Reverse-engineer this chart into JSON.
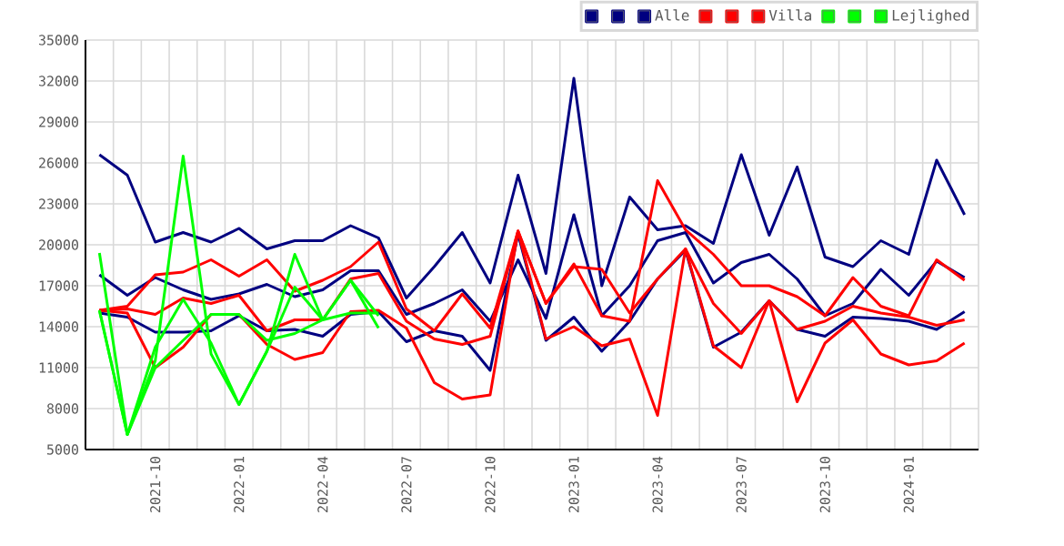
{
  "chart_data": {
    "type": "line",
    "categories": [
      null,
      null,
      "2021-10",
      null,
      null,
      "2022-01",
      null,
      null,
      "2022-04",
      null,
      null,
      "2022-07",
      null,
      null,
      "2022-10",
      null,
      null,
      "2023-01",
      null,
      null,
      "2023-04",
      null,
      null,
      "2023-07",
      null,
      null,
      "2023-10",
      null,
      null,
      "2024-01",
      null,
      null
    ],
    "series": [
      {
        "color": "#000080",
        "values": [
          26600,
          25100,
          20200,
          20900,
          20200,
          21200,
          19700,
          20300,
          20300,
          21400,
          20500,
          16100,
          18400,
          20900,
          17200,
          25100,
          17900,
          32200,
          17000,
          23500,
          21100,
          21400,
          20100,
          26600,
          20700,
          25700,
          19100,
          18400,
          20300,
          19300,
          26200,
          22200
        ]
      },
      {
        "color": "#000080",
        "values": [
          17800,
          16300,
          17600,
          16700,
          16000,
          16400,
          17100,
          16200,
          16700,
          18100,
          18100,
          14900,
          15700,
          16700,
          14400,
          18900,
          14600,
          22200,
          14800,
          17000,
          20300,
          20900,
          17200,
          18700,
          19300,
          17500,
          14800,
          15700,
          18200,
          16300,
          18800,
          17600
        ]
      },
      {
        "name": "Alle",
        "color": "#000080",
        "values": [
          15000,
          14700,
          13600,
          13600,
          13700,
          14800,
          13700,
          13800,
          13300,
          14900,
          15100,
          12900,
          13700,
          13300,
          10800,
          20800,
          13000,
          14700,
          12200,
          14400,
          17500,
          19600,
          12500,
          13600,
          15900,
          13800,
          13300,
          14700,
          14600,
          14400,
          13800,
          15100
        ]
      },
      {
        "color": "#ff0000",
        "values": [
          15200,
          15500,
          17800,
          18000,
          18900,
          17700,
          18900,
          16600,
          17400,
          18400,
          20200,
          15300,
          13700,
          16400,
          13900,
          21000,
          15700,
          18600,
          14800,
          14400,
          24700,
          21100,
          19300,
          17000,
          17000,
          16200,
          14800,
          17600,
          15500,
          14800,
          18900,
          17400
        ]
      },
      {
        "color": "#ff0000",
        "values": [
          15200,
          15300,
          14900,
          16100,
          15700,
          16300,
          13700,
          14500,
          14500,
          17500,
          17900,
          14400,
          13100,
          12700,
          13300,
          21000,
          15700,
          18400,
          18200,
          15000,
          17500,
          19700,
          15700,
          13500,
          15900,
          13800,
          14400,
          15500,
          15000,
          14700,
          14100,
          14500
        ]
      },
      {
        "name": "Villa",
        "color": "#ff0000",
        "values": [
          15200,
          15000,
          11000,
          12500,
          14900,
          14900,
          12700,
          11600,
          12100,
          15100,
          15200,
          13900,
          9900,
          8700,
          9000,
          21000,
          13100,
          14000,
          12600,
          13100,
          7500,
          19700,
          12600,
          11000,
          15900,
          8500,
          12800,
          14500,
          12000,
          11200,
          11500,
          12800
        ]
      },
      {
        "color": "#00ff00",
        "values": [
          19400,
          6100,
          11500,
          26500,
          12000,
          8300,
          12200,
          19300,
          14500,
          17400,
          13900,
          null,
          null,
          null,
          null,
          null,
          null,
          null,
          null,
          null,
          null,
          null,
          null,
          null,
          null,
          null,
          null,
          null,
          null,
          null,
          null,
          null
        ]
      },
      {
        "color": "#00ff00",
        "values": [
          15200,
          6100,
          12500,
          16000,
          12800,
          8300,
          12200,
          16900,
          14500,
          17400,
          14800,
          null,
          null,
          null,
          null,
          null,
          null,
          null,
          null,
          null,
          null,
          null,
          null,
          null,
          null,
          null,
          null,
          null,
          null,
          null,
          null,
          null
        ]
      },
      {
        "name": "Lejlighed",
        "color": "#00ff00",
        "values": [
          15200,
          6100,
          11000,
          13000,
          14900,
          14900,
          13000,
          13500,
          14500,
          15000,
          15000,
          null,
          null,
          null,
          null,
          null,
          null,
          null,
          null,
          null,
          null,
          null,
          null,
          null,
          null,
          null,
          null,
          null,
          null,
          null,
          null,
          null
        ]
      }
    ],
    "ylim": [
      5000,
      35000
    ],
    "yticks": [
      5000,
      8000,
      11000,
      14000,
      17000,
      20000,
      23000,
      26000,
      29000,
      32000,
      35000
    ],
    "grid": true,
    "legend": "top right"
  }
}
